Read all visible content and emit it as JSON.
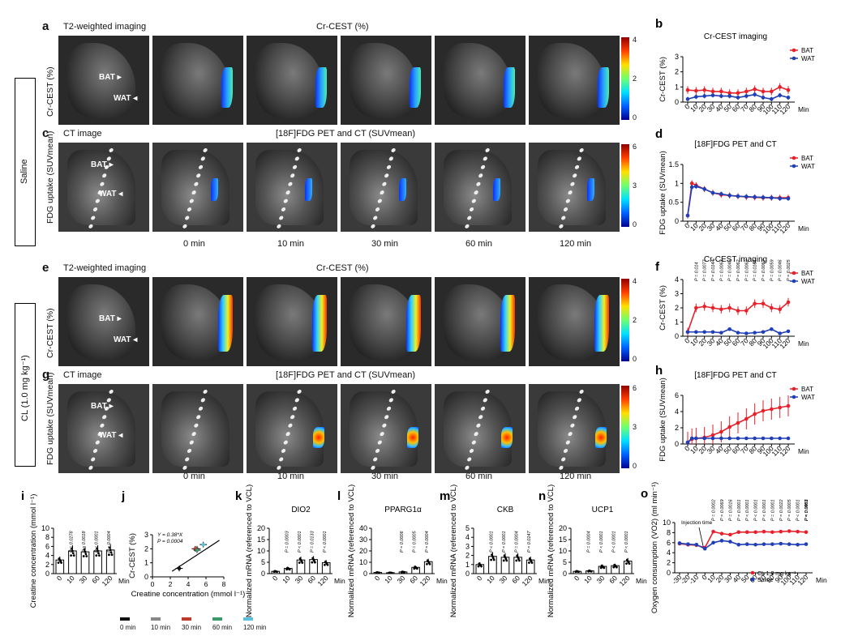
{
  "panels": {
    "a": {
      "letter": "a",
      "left_title": "T2-weighted imaging",
      "center_title": "Cr-CEST (%)",
      "ylabel": "Cr-CEST (%)",
      "cb_ticks": [
        "4",
        "2",
        "0"
      ],
      "bat": "BAT",
      "wat": "WAT"
    },
    "c": {
      "letter": "c",
      "left_title": "CT image",
      "center_title": "[18F]FDG PET and CT (SUVmean)",
      "ylabel": "FDG uptake (SUVmean)",
      "cb_ticks": [
        "6",
        "3",
        "0"
      ],
      "bat": "BAT",
      "wat": "WAT"
    },
    "e": {
      "letter": "e",
      "left_title": "T2-weighted imaging",
      "center_title": "Cr-CEST (%)",
      "ylabel": "Cr-CEST (%)",
      "cb_ticks": [
        "4",
        "2",
        "0"
      ],
      "bat": "BAT",
      "wat": "WAT"
    },
    "g": {
      "letter": "g",
      "left_title": "CT image",
      "center_title": "[18F]FDG PET and CT (SUVmean)",
      "ylabel": "FDG uptake (SUVmean)",
      "cb_ticks": [
        "6",
        "3",
        "0"
      ],
      "bat": "BAT",
      "wat": "WAT"
    }
  },
  "time_labels": [
    "0 min",
    "10 min",
    "30 min",
    "60 min",
    "120 min"
  ],
  "groups": {
    "saline": "Saline",
    "cl": "CL (1.0 mg kg⁻¹)"
  },
  "minor_letters": {
    "b": "b",
    "d": "d",
    "f": "f",
    "h": "h",
    "i": "i",
    "j": "j",
    "k": "k",
    "l": "l",
    "m": "m",
    "n": "n",
    "o": "o"
  },
  "legend_bottom": [
    "0 min",
    "10 min",
    "30 min",
    "60 min",
    "120 min"
  ],
  "legend_colors": [
    "#111111",
    "#888888",
    "#c0392b",
    "#3a9a6a",
    "#5bc0de"
  ],
  "chart_data": [
    {
      "id": "b",
      "type": "line",
      "title": "Cr-CEST imaging",
      "ylabel": "Cr-CEST (%)",
      "xlabel": "Min",
      "x": [
        0,
        10,
        20,
        30,
        40,
        50,
        60,
        70,
        80,
        90,
        100,
        110,
        120
      ],
      "ylim": [
        0,
        3
      ],
      "yticks": [
        0,
        1,
        2,
        3
      ],
      "series": [
        {
          "name": "BAT",
          "color": "#e8202a",
          "values": [
            0.8,
            0.75,
            0.8,
            0.7,
            0.7,
            0.6,
            0.6,
            0.7,
            0.85,
            0.7,
            0.7,
            1.0,
            0.8
          ],
          "err": 0.25
        },
        {
          "name": "WAT",
          "color": "#1f3fb8",
          "values": [
            0.2,
            0.35,
            0.4,
            0.45,
            0.4,
            0.4,
            0.3,
            0.4,
            0.5,
            0.3,
            0.2,
            0.45,
            0.3
          ],
          "err": 0.15
        }
      ]
    },
    {
      "id": "d",
      "type": "line",
      "title": "[18F]FDG PET and CT",
      "ylabel": "FDG uptake (SUVmean)",
      "xlabel": "Min",
      "x": [
        0,
        5,
        10,
        20,
        30,
        40,
        50,
        60,
        70,
        80,
        90,
        100,
        110,
        120
      ],
      "ylim": [
        0,
        1.5
      ],
      "yticks": [
        0,
        0.5,
        1.0,
        1.5
      ],
      "series": [
        {
          "name": "BAT",
          "color": "#e8202a",
          "values": [
            0.15,
            1.0,
            0.95,
            0.85,
            0.75,
            0.7,
            0.68,
            0.66,
            0.64,
            0.63,
            0.62,
            0.62,
            0.62,
            0.62
          ],
          "err": 0.08
        },
        {
          "name": "WAT",
          "color": "#1f3fb8",
          "values": [
            0.15,
            0.9,
            0.92,
            0.85,
            0.75,
            0.72,
            0.68,
            0.66,
            0.65,
            0.64,
            0.63,
            0.62,
            0.6,
            0.6
          ],
          "err": 0.06
        }
      ]
    },
    {
      "id": "f",
      "type": "line",
      "title": "Cr-CEST imaging",
      "ylabel": "Cr-CEST (%)",
      "xlabel": "Min",
      "x": [
        0,
        10,
        20,
        30,
        40,
        50,
        60,
        70,
        80,
        90,
        100,
        110,
        120
      ],
      "ylim": [
        0,
        4
      ],
      "yticks": [
        0,
        1,
        2,
        3,
        4
      ],
      "series": [
        {
          "name": "BAT",
          "color": "#e8202a",
          "values": [
            0.3,
            2.0,
            2.1,
            2.0,
            1.9,
            2.0,
            1.8,
            1.8,
            2.3,
            2.3,
            2.0,
            1.9,
            2.4
          ],
          "err": 0.3
        },
        {
          "name": "WAT",
          "color": "#1f3fb8",
          "values": [
            0.3,
            0.3,
            0.3,
            0.3,
            0.25,
            0.5,
            0.25,
            0.2,
            0.25,
            0.3,
            0.5,
            0.2,
            0.35
          ],
          "err": 0.1
        }
      ],
      "annotations": [
        "P = 0.014",
        "P = 0.0077",
        "P = 0.0144",
        "P = 0.0063",
        "P = 0.0045",
        "P = 0.0062",
        "P = 0.0062",
        "P = 0.0164",
        "P = 0.0062",
        "P = 0.0059",
        "P = 0.0046",
        "P = 0.0025"
      ]
    },
    {
      "id": "h",
      "type": "line",
      "title": "[18F]FDG PET and CT",
      "ylabel": "FDG uptake (SUVmean)",
      "xlabel": "Min",
      "x": [
        0,
        5,
        10,
        20,
        30,
        40,
        50,
        60,
        70,
        80,
        90,
        100,
        110,
        120
      ],
      "ylim": [
        0,
        6
      ],
      "yticks": [
        0,
        2,
        4,
        6
      ],
      "series": [
        {
          "name": "BAT",
          "color": "#e8202a",
          "values": [
            0.2,
            0.6,
            0.7,
            0.8,
            1.1,
            1.5,
            2.1,
            2.6,
            3.1,
            3.7,
            4.1,
            4.3,
            4.5,
            4.7
          ],
          "err": 1.3
        },
        {
          "name": "WAT",
          "color": "#1f3fb8",
          "values": [
            0.2,
            0.7,
            0.7,
            0.7,
            0.7,
            0.7,
            0.7,
            0.7,
            0.7,
            0.7,
            0.7,
            0.7,
            0.7,
            0.7
          ],
          "err": 0.08
        }
      ]
    },
    {
      "id": "i",
      "type": "bar",
      "ylabel": "Creatine concentration (mmol l⁻¹)",
      "categories": [
        "0",
        "10",
        "30",
        "60",
        "120"
      ],
      "xlabel": "Min",
      "values": [
        3.0,
        5.0,
        4.8,
        5.0,
        5.2
      ],
      "ylim": [
        0,
        10
      ],
      "yticks": [
        0,
        2,
        4,
        6,
        8,
        10
      ],
      "annotations": [
        "P = 0.0278",
        "P = 0.0018",
        "P < 0.0001",
        "P = 0.0004"
      ]
    },
    {
      "id": "j",
      "type": "scatter",
      "ylabel": "Cr-CEST (%)",
      "xlabel": "Creatine concentration (mmol l⁻¹)",
      "x": [
        3.0,
        5.0,
        4.8,
        5.0,
        5.7
      ],
      "y": [
        0.6,
        2.0,
        2.0,
        1.9,
        2.3
      ],
      "xlim": [
        0,
        8
      ],
      "ylim": [
        0,
        3
      ],
      "xticks": [
        0,
        2,
        4,
        6,
        8
      ],
      "yticks": [
        0,
        1,
        2,
        3
      ],
      "fit": "Y = 0.38*X",
      "p": "P = 0.0004"
    },
    {
      "id": "k",
      "type": "bar",
      "title": "DIO2",
      "ylabel": "Normalized mRNA (referenced to VCL)",
      "categories": [
        "0",
        "10",
        "30",
        "60",
        "120"
      ],
      "xlabel": "Min",
      "values": [
        1.0,
        2.3,
        6.0,
        6.2,
        4.8
      ],
      "ylim": [
        0,
        20
      ],
      "yticks": [
        0,
        5,
        10,
        15,
        20
      ],
      "annotations": [
        "P = 0.0003",
        "P < 0.0001",
        "P = 0.0133",
        "P < 0.0001"
      ]
    },
    {
      "id": "l",
      "type": "bar",
      "title": "PPARG1α",
      "ylabel": "Normalized mRNA (referenced to VCL)",
      "categories": [
        "0",
        "10",
        "30",
        "60",
        "120"
      ],
      "xlabel": "Min",
      "values": [
        1.0,
        0.8,
        1.5,
        5.5,
        10.5
      ],
      "ylim": [
        0,
        40
      ],
      "yticks": [
        0,
        10,
        20,
        30,
        40
      ],
      "annotations": [
        "P = 0.0006",
        "P = 0.0005",
        "P = 0.0004"
      ]
    },
    {
      "id": "m",
      "type": "bar",
      "title": "CKB",
      "ylabel": "Normalized mRNA (referenced to VCL)",
      "categories": [
        "0",
        "10",
        "30",
        "60",
        "120"
      ],
      "xlabel": "Min",
      "values": [
        1.0,
        1.9,
        1.8,
        1.8,
        1.5
      ],
      "ylim": [
        0,
        5
      ],
      "yticks": [
        0,
        1,
        2,
        3,
        4,
        5
      ],
      "annotations": [
        "P < 0.0001",
        "P = 0.0001",
        "P = 0.0004",
        "P = 0.0147"
      ]
    },
    {
      "id": "n",
      "type": "bar",
      "title": "UCP1",
      "ylabel": "Normalized mRNA (referenced to VCL)",
      "categories": [
        "0",
        "10",
        "30",
        "60",
        "120"
      ],
      "xlabel": "Min",
      "values": [
        1.0,
        1.2,
        3.2,
        3.5,
        5.5
      ],
      "ylim": [
        0,
        20
      ],
      "yticks": [
        0,
        5,
        10,
        15,
        20
      ],
      "annotations": [
        "P = 0.0004",
        "P < 0.0001",
        "P < 0.0001",
        "P < 0.0001"
      ]
    },
    {
      "id": "o",
      "type": "line",
      "ylabel": "Oxygen consumption (VO2) (ml min⁻¹)",
      "xlabel": "Min",
      "x": [
        -30,
        -20,
        -10,
        0,
        10,
        20,
        30,
        40,
        50,
        60,
        70,
        80,
        90,
        100,
        110,
        120
      ],
      "ylim": [
        0,
        10
      ],
      "yticks": [
        0,
        2,
        4,
        6,
        8,
        10
      ],
      "injection_label": "Injection time",
      "series": [
        {
          "name": "CL 1.0 mg kg⁻¹",
          "color": "#e8202a",
          "values": [
            5.8,
            5.6,
            5.5,
            5.0,
            8.2,
            7.8,
            7.6,
            8.1,
            8.1,
            8.1,
            8.2,
            8.1,
            8.2,
            8.3,
            8.2,
            8.1
          ],
          "err": 0.3
        },
        {
          "name": "Saline",
          "color": "#1f3fb8",
          "values": [
            5.9,
            5.7,
            5.6,
            4.8,
            6.0,
            6.4,
            6.2,
            5.6,
            5.7,
            5.6,
            5.7,
            5.7,
            5.8,
            5.7,
            5.6,
            5.7
          ],
          "err": 0.3
        }
      ],
      "annotations": [
        "P = 0.0002",
        "P = 0.0069",
        "P = 0.0016",
        "P = 0.0001",
        "P < 0.0001",
        "P < 0.0001",
        "P < 0.0001",
        "P = 0.0001",
        "P = 0.0022",
        "P = 0.0005",
        "P < 0.0001",
        "P < 0.0001",
        "P = 0.0003",
        "P = 0.0481"
      ]
    }
  ]
}
